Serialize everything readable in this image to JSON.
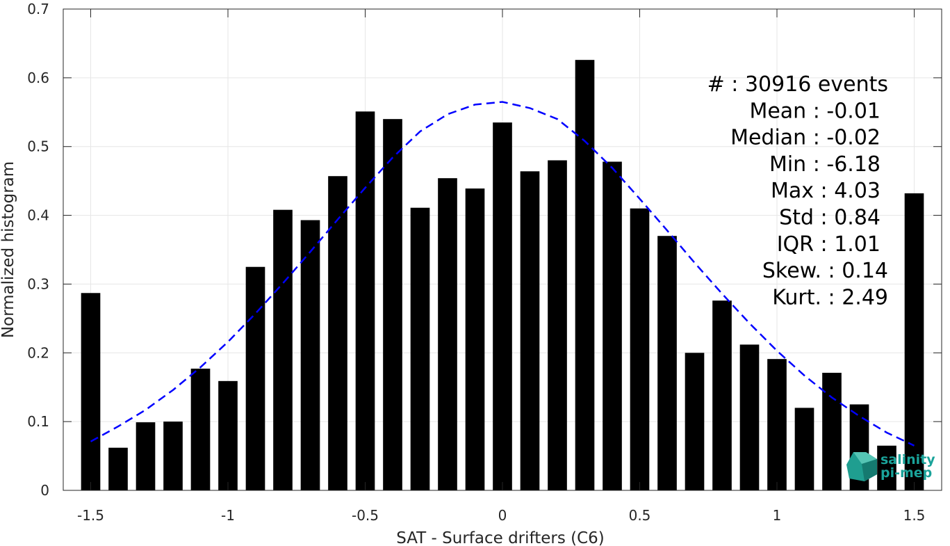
{
  "chart_data": {
    "type": "bar",
    "xlabel": "SAT - Surface drifters (C6)",
    "ylabel": "Normalized histogram",
    "xlim": [
      -1.6,
      1.6
    ],
    "ylim": [
      0,
      0.7
    ],
    "grid": true,
    "x_ticks": [
      -1.5,
      -1,
      -0.5,
      0,
      0.5,
      1,
      1.5
    ],
    "x_tick_labels": [
      "-1.5",
      "-1",
      "-0.5",
      "0",
      "0.5",
      "1",
      "1.5"
    ],
    "y_ticks": [
      0,
      0.1,
      0.2,
      0.3,
      0.4,
      0.5,
      0.6,
      0.7
    ],
    "y_tick_labels": [
      "0",
      "0.1",
      "0.2",
      "0.3",
      "0.4",
      "0.5",
      "0.6",
      "0.7"
    ],
    "bars": {
      "color": "#000000",
      "x": [
        -1.5,
        -1.4,
        -1.3,
        -1.2,
        -1.1,
        -1.0,
        -0.9,
        -0.8,
        -0.7,
        -0.6,
        -0.5,
        -0.4,
        -0.3,
        -0.2,
        -0.1,
        0.0,
        0.1,
        0.2,
        0.3,
        0.4,
        0.5,
        0.6,
        0.7,
        0.8,
        0.9,
        1.0,
        1.1,
        1.2,
        1.3,
        1.4,
        1.5
      ],
      "values": [
        0.287,
        0.062,
        0.099,
        0.1,
        0.177,
        0.159,
        0.325,
        0.408,
        0.393,
        0.457,
        0.551,
        0.54,
        0.411,
        0.454,
        0.439,
        0.535,
        0.464,
        0.48,
        0.626,
        0.478,
        0.41,
        0.37,
        0.2,
        0.276,
        0.212,
        0.191,
        0.12,
        0.171,
        0.125,
        0.065,
        0.432
      ]
    },
    "fit_curve": {
      "style": "dashed",
      "color": "#0000ff",
      "x": [
        -1.5,
        -1.4,
        -1.3,
        -1.2,
        -1.1,
        -1.0,
        -0.9,
        -0.8,
        -0.7,
        -0.6,
        -0.5,
        -0.4,
        -0.3,
        -0.2,
        -0.1,
        0.0,
        0.1,
        0.2,
        0.3,
        0.4,
        0.5,
        0.6,
        0.7,
        0.8,
        0.9,
        1.0,
        1.1,
        1.2,
        1.3,
        1.4,
        1.5
      ],
      "y": [
        0.071,
        0.093,
        0.117,
        0.146,
        0.179,
        0.216,
        0.257,
        0.301,
        0.347,
        0.394,
        0.44,
        0.484,
        0.522,
        0.547,
        0.561,
        0.565,
        0.556,
        0.54,
        0.508,
        0.469,
        0.424,
        0.378,
        0.331,
        0.286,
        0.243,
        0.203,
        0.167,
        0.135,
        0.108,
        0.084,
        0.065
      ]
    },
    "stats": [
      "#  : 30916 events",
      "Mean : -0.01",
      "Median : -0.02",
      "Min : -6.18",
      "Max : 4.03",
      "Std : 0.84",
      "IQR : 1.01",
      "Skew. : 0.14",
      "Kurt. : 2.49"
    ]
  },
  "logo": {
    "line1": "salinity",
    "line2": "pi-mep",
    "color": "#1aa39a"
  }
}
